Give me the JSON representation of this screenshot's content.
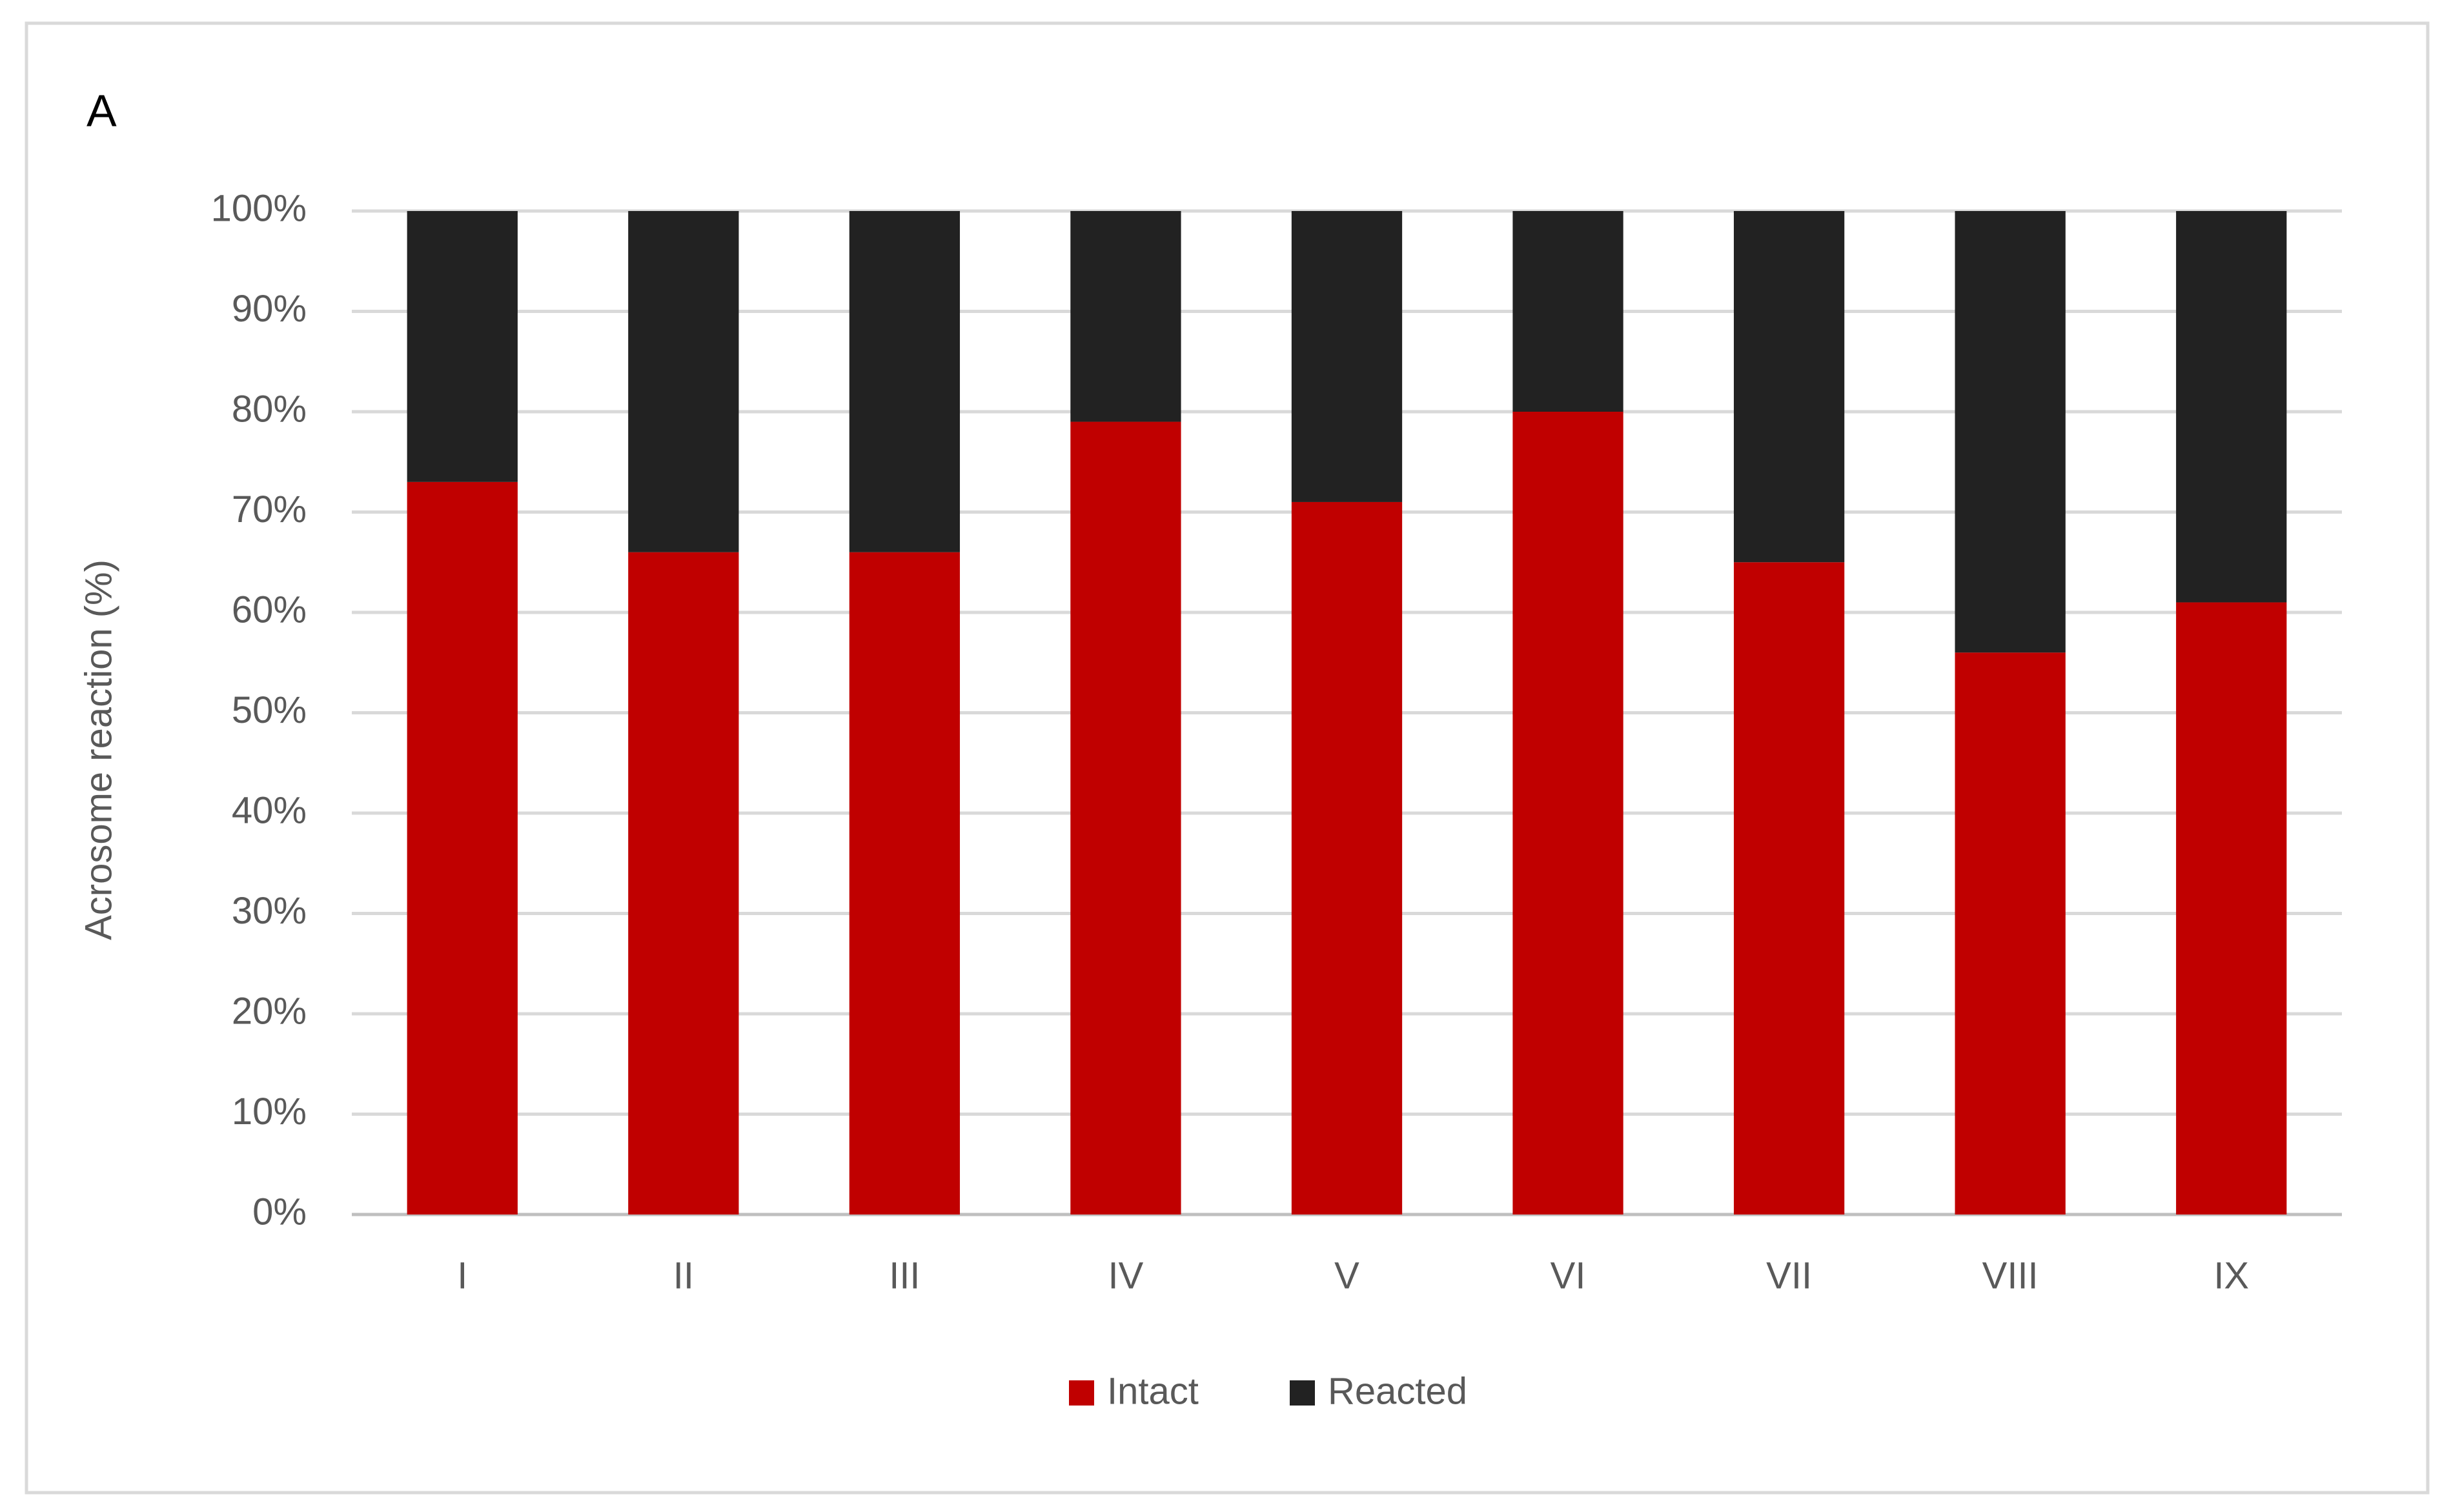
{
  "chart_data": {
    "type": "stacked_bar",
    "panel_label": "A",
    "y_label": "Acrosome reaction (%)",
    "categories": [
      "I",
      "II",
      "III",
      "IV",
      "V",
      "VI",
      "VII",
      "VIII",
      "IX"
    ],
    "series": [
      {
        "name": "Intact",
        "color": "#c00000",
        "values": [
          73,
          66,
          66,
          79,
          71,
          80,
          65,
          56,
          61
        ]
      },
      {
        "name": "Reacted",
        "color": "#222222",
        "values": [
          27,
          34,
          34,
          21,
          29,
          20,
          35,
          44,
          39
        ]
      }
    ],
    "ylim": [
      0,
      100
    ],
    "yticks": [
      {
        "value": 0,
        "label": "0%"
      },
      {
        "value": 10,
        "label": "10%"
      },
      {
        "value": 20,
        "label": "20%"
      },
      {
        "value": 30,
        "label": "30%"
      },
      {
        "value": 40,
        "label": "40%"
      },
      {
        "value": 50,
        "label": "50%"
      },
      {
        "value": 60,
        "label": "60%"
      },
      {
        "value": 70,
        "label": "70%"
      },
      {
        "value": 80,
        "label": "80%"
      },
      {
        "value": 90,
        "label": "90%"
      },
      {
        "value": 100,
        "label": "100%"
      }
    ],
    "grid": true,
    "legend": "bottom"
  }
}
